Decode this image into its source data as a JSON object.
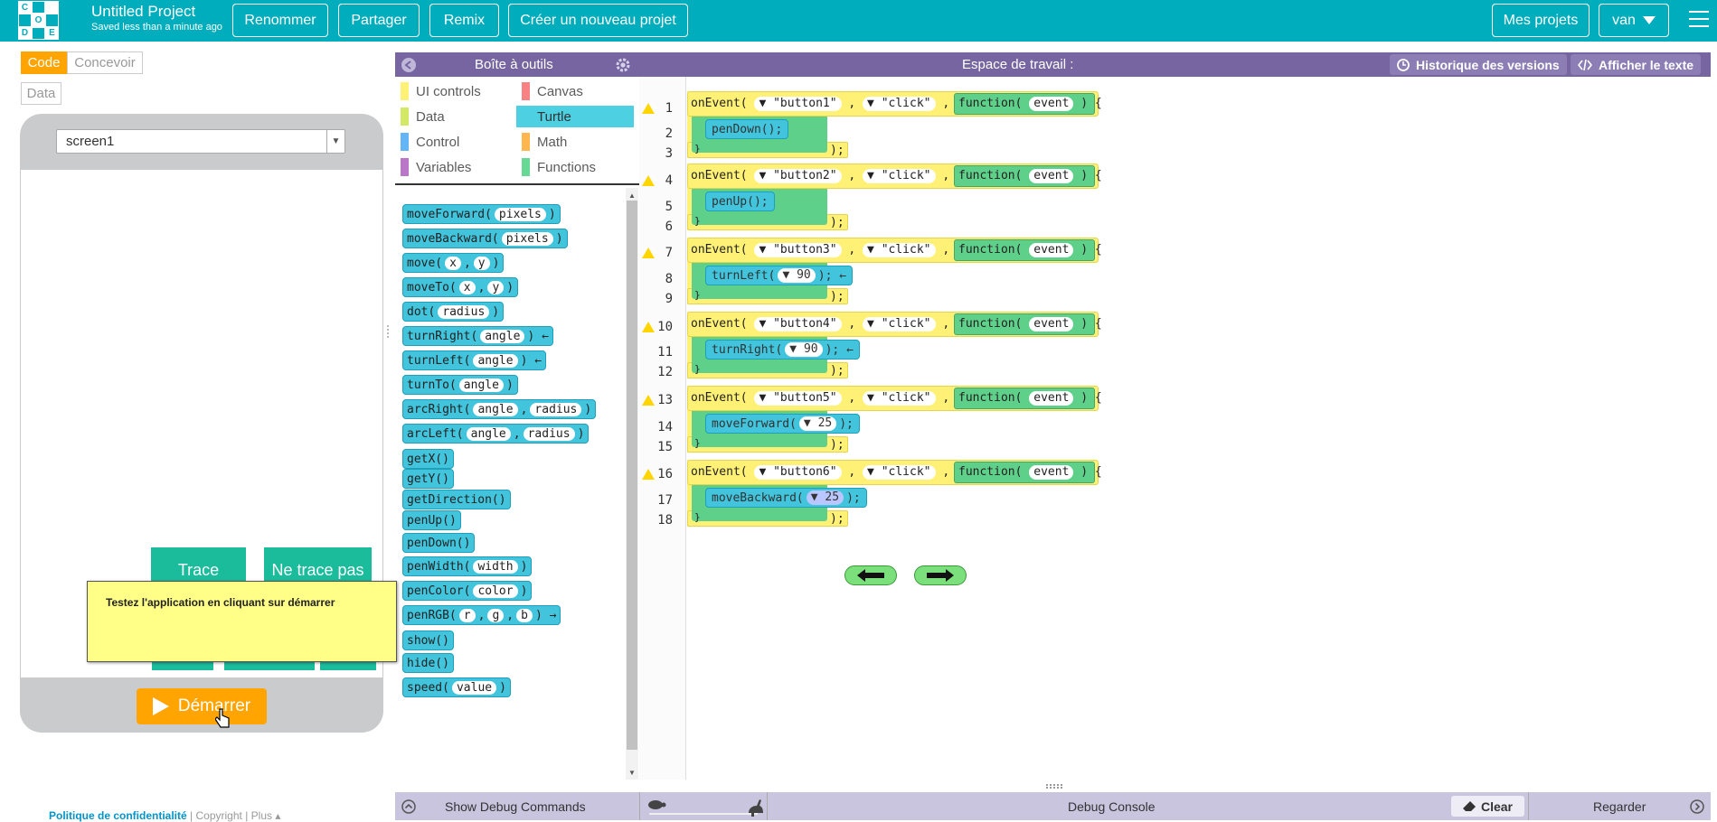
{
  "header": {
    "logo_letters": [
      "C",
      "O",
      "D",
      "E"
    ],
    "project_title": "Untitled Project",
    "saved_status": "Saved less than a minute ago",
    "buttons": {
      "rename": "Renommer",
      "share": "Partager",
      "remix": "Remix",
      "new_project": "Créer un nouveau projet"
    },
    "my_projects": "Mes projets",
    "user": "van"
  },
  "mode_toggle": {
    "code": "Code",
    "design": "Concevoir",
    "data": "Data"
  },
  "app_preview": {
    "screen_select": "screen1",
    "button_trace": "Trace",
    "button_no_trace": "Ne trace pas",
    "tooltip": "Testez l'application en cliquant sur démarrer",
    "run_button": "Démarrer"
  },
  "footer": {
    "privacy": "Politique de confidentialité",
    "sep": "|",
    "copyright": "Copyright",
    "more": "Plus ▴"
  },
  "toolbox": {
    "title": "Boîte à outils",
    "categories": [
      {
        "label": "UI controls",
        "color": "#fff176"
      },
      {
        "label": "Canvas",
        "color": "#f78183"
      },
      {
        "label": "Data",
        "color": "#d3e965"
      },
      {
        "label": "Turtle",
        "color": "#4dd0e1"
      },
      {
        "label": "Control",
        "color": "#64b5f6"
      },
      {
        "label": "Math",
        "color": "#ffb74d"
      },
      {
        "label": "Variables",
        "color": "#bb77c7"
      },
      {
        "label": "Functions",
        "color": "#68d995"
      }
    ],
    "blocks": [
      {
        "name": "moveForward(",
        "params": [
          "pixels"
        ],
        "suffix": ")"
      },
      {
        "name": "moveBackward(",
        "params": [
          "pixels"
        ],
        "suffix": ")"
      },
      {
        "name": "move(",
        "params": [
          "x",
          "y"
        ],
        "suffix": ")"
      },
      {
        "name": "moveTo(",
        "params": [
          "x",
          "y"
        ],
        "suffix": ")"
      },
      {
        "name": "dot(",
        "params": [
          "radius"
        ],
        "suffix": ")"
      },
      {
        "name": "turnRight(",
        "params": [
          "angle"
        ],
        "suffix": ") ←"
      },
      {
        "name": "turnLeft(",
        "params": [
          "angle"
        ],
        "suffix": ") ←"
      },
      {
        "name": "turnTo(",
        "params": [
          "angle"
        ],
        "suffix": ")"
      },
      {
        "name": "arcRight(",
        "params": [
          "angle",
          "radius"
        ],
        "suffix": ")"
      },
      {
        "name": "arcLeft(",
        "params": [
          "angle",
          "radius"
        ],
        "suffix": ")"
      },
      {
        "name": "getX()",
        "params": [],
        "suffix": ""
      },
      {
        "name": "getY()",
        "params": [],
        "suffix": ""
      },
      {
        "name": "getDirection()",
        "params": [],
        "suffix": ""
      },
      {
        "name": "penUp()",
        "params": [],
        "suffix": ""
      },
      {
        "name": "penDown()",
        "params": [],
        "suffix": ""
      },
      {
        "name": "penWidth(",
        "params": [
          "width"
        ],
        "suffix": ")"
      },
      {
        "name": "penColor(",
        "params": [
          "color"
        ],
        "suffix": ")"
      },
      {
        "name": "penRGB(",
        "params": [
          "r",
          "g",
          "b"
        ],
        "suffix": ") →"
      },
      {
        "name": "show()",
        "params": [],
        "suffix": ""
      },
      {
        "name": "hide()",
        "params": [],
        "suffix": ""
      },
      {
        "name": "speed(",
        "params": [
          "value"
        ],
        "suffix": ")"
      }
    ]
  },
  "workspace": {
    "title": "Espace de travail :",
    "version_history": "Historique des versions",
    "show_text": "Afficher le texte",
    "line_numbers": [
      "1",
      "2",
      "3",
      "4",
      "5",
      "6",
      "7",
      "8",
      "9",
      "10",
      "11",
      "12",
      "13",
      "14",
      "15",
      "16",
      "17",
      "18"
    ],
    "events": [
      {
        "button": "\"button1\"",
        "event": "\"click\"",
        "body": "penDown();",
        "arg": ""
      },
      {
        "button": "\"button2\"",
        "event": "\"click\"",
        "body": "penUp();",
        "arg": ""
      },
      {
        "button": "\"button3\"",
        "event": "\"click\"",
        "body": "turnLeft(",
        "arg": "90",
        "tail": "); ←"
      },
      {
        "button": "\"button4\"",
        "event": "\"click\"",
        "body": "turnRight(",
        "arg": "90",
        "tail": "); ←"
      },
      {
        "button": "\"button5\"",
        "event": "\"click\"",
        "body": "moveForward(",
        "arg": "25",
        "tail": ");"
      },
      {
        "button": "\"button6\"",
        "event": "\"click\"",
        "body": "moveBackward(",
        "arg": "25",
        "tail": ");"
      }
    ],
    "on_event": "onEvent(",
    "comma": ",",
    "function_kw": "function(",
    "event_param": "event",
    "open_brace": ") {",
    "close_paren": "}",
    "close_tail": ");"
  },
  "debug": {
    "show_commands": "Show Debug Commands",
    "console": "Debug Console",
    "clear": "Clear",
    "watch": "Regarder"
  }
}
